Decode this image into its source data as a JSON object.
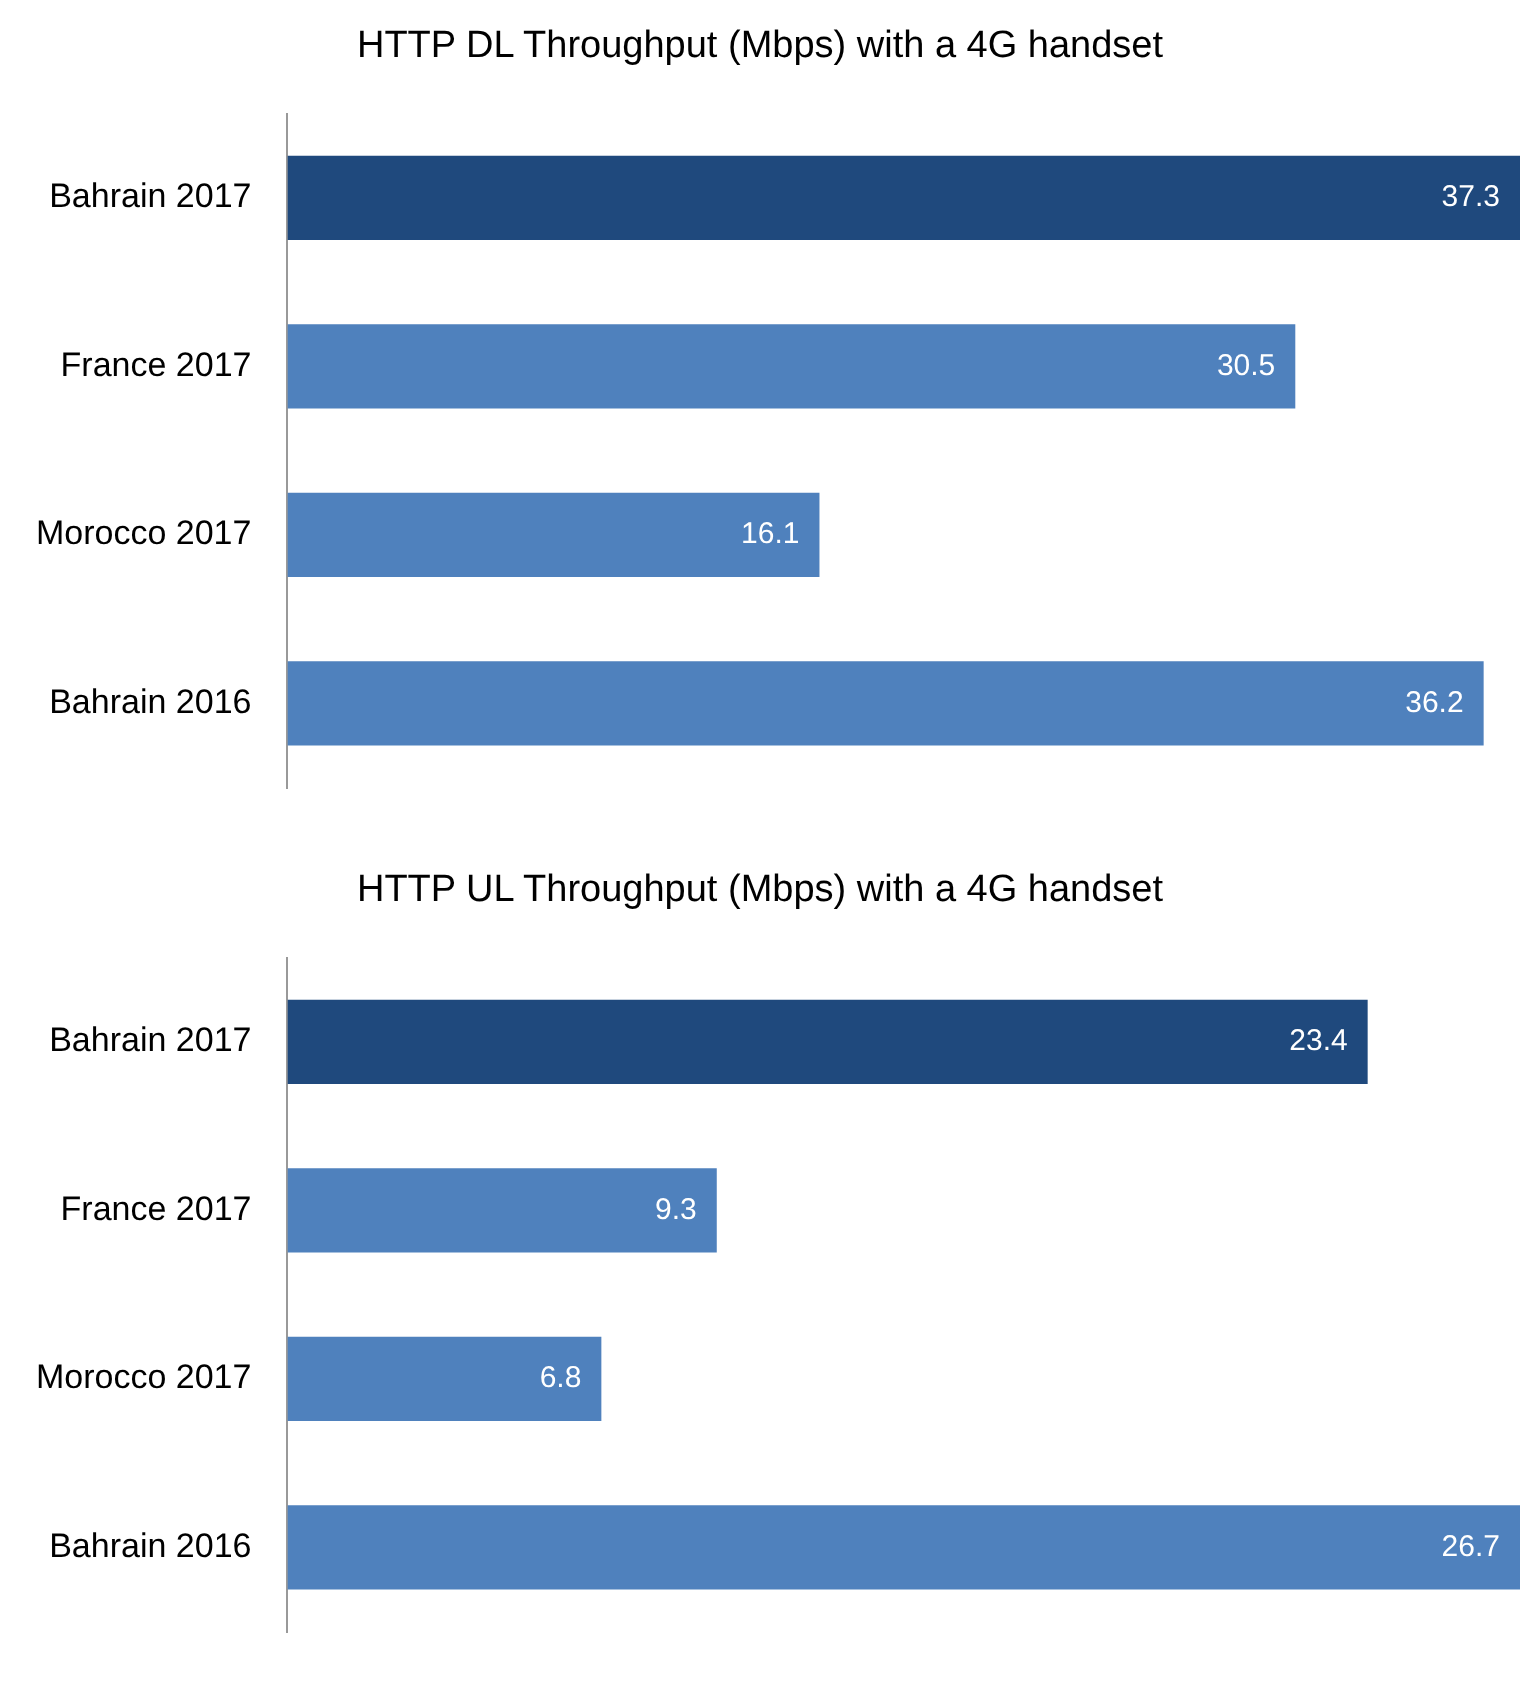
{
  "chart_data": [
    {
      "type": "bar",
      "orientation": "horizontal",
      "title": "HTTP DL Throughput (Mbps) with a 4G handset",
      "categories": [
        "Bahrain 2017",
        "France 2017",
        "Morocco 2017",
        "Bahrain 2016"
      ],
      "values": [
        37.3,
        30.5,
        16.1,
        36.2
      ],
      "colors": [
        "#1f497d",
        "#4f81bd",
        "#4f81bd",
        "#4f81bd"
      ],
      "data_labels": true
    },
    {
      "type": "bar",
      "orientation": "horizontal",
      "title": "HTTP UL Throughput (Mbps) with a 4G handset",
      "categories": [
        "Bahrain 2017",
        "France 2017",
        "Morocco 2017",
        "Bahrain 2016"
      ],
      "values": [
        23.4,
        9.3,
        6.8,
        26.7
      ],
      "colors": [
        "#1f497d",
        "#4f81bd",
        "#4f81bd",
        "#4f81bd"
      ],
      "data_labels": true
    }
  ]
}
